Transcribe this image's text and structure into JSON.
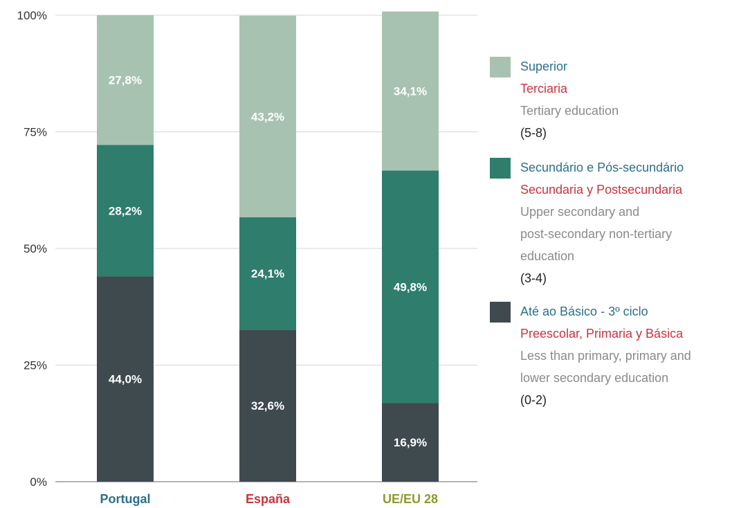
{
  "chart_data": {
    "type": "bar",
    "stacked": true,
    "categories": [
      "Portugal",
      "España",
      "UE/EU 28"
    ],
    "category_colors": [
      "#2c6f8a",
      "#c8343e",
      "#8e9a2c"
    ],
    "y_ticks": [
      "0%",
      "25%",
      "50%",
      "75%",
      "100%"
    ],
    "ylim": [
      0,
      100
    ],
    "series": [
      {
        "key": "basic",
        "color": "#3f4a4f",
        "values": [
          44.0,
          32.6,
          16.9
        ],
        "labels": [
          "44,0%",
          "32,6%",
          "16,9%"
        ]
      },
      {
        "key": "secondary",
        "color": "#2e7d6d",
        "values": [
          28.2,
          24.1,
          49.8
        ],
        "labels": [
          "28,2%",
          "24,1%",
          "49,8%"
        ]
      },
      {
        "key": "tertiary",
        "color": "#a8c2b2",
        "values": [
          27.8,
          43.2,
          34.1
        ],
        "labels": [
          "27,8%",
          "43,2%",
          "34,1%"
        ]
      }
    ]
  },
  "legend": [
    {
      "color": "#a8c2b2",
      "pt": "Superior",
      "es": "Terciaria",
      "en": [
        "Tertiary education"
      ],
      "code": "(5-8)"
    },
    {
      "color": "#2e7d6d",
      "pt": "Secundário e Pós-secundário",
      "es": "Secundaria y Postsecundaria",
      "en": [
        "Upper secondary and",
        "post-secondary non-tertiary",
        "education"
      ],
      "code": "(3-4)"
    },
    {
      "color": "#3f4a4f",
      "pt": "Até ao Básico - 3º ciclo",
      "es": "Preescolar, Primaria y Básica",
      "en": [
        "Less than primary, primary and",
        "lower secondary education"
      ],
      "code": "(0-2)"
    }
  ]
}
